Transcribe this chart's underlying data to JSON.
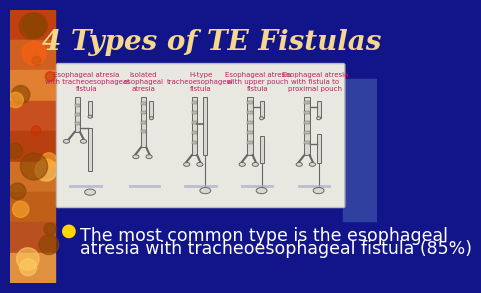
{
  "title": "4 Types of TE Fistulas",
  "title_color": "#F5D78E",
  "title_fontsize": 20,
  "bg_color": "#12158a",
  "left_bg_color": "#b05020",
  "image_box_color": "#e8e8e0",
  "image_box_border": "#bbbbbb",
  "bullet_color": "#FFD700",
  "bullet_text_line1": "The most common type is the esophageal",
  "bullet_text_line2": "atresia with tracheoesophageal fistula (85%)",
  "bullet_fontsize": 12.5,
  "bullet_text_color": "#ffffff",
  "fistula_labels": [
    "Esophageal atresia\nwith tracheoesophageal\nfistula",
    "Isolated\nesophageal\natresia",
    "H-type\ntracheoesophageal\nfistula",
    "Esophageal atresia\nwith upper pouch\nfistula",
    "Esophageal atresia\nwith fistula to\nproximal pouch"
  ],
  "label_fontsize": 5.0,
  "label_color": "#c02060",
  "drawing_color": "#666666",
  "drawing_fill": "#d8d8d0"
}
